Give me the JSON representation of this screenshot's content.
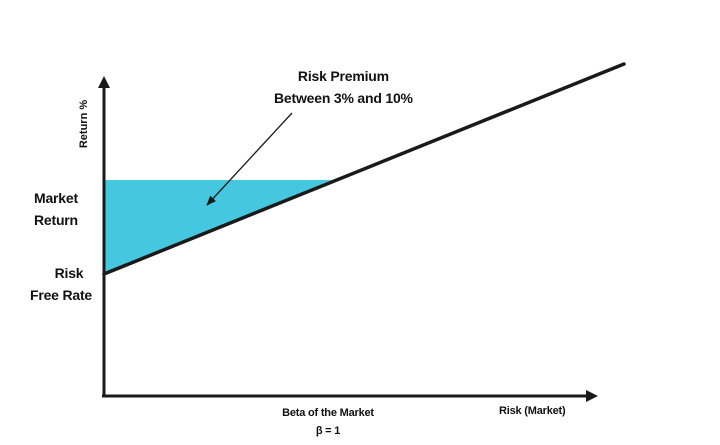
{
  "chart_data": {
    "type": "diagram",
    "y_axis_label": "Return %",
    "x_axis_label": "Risk (Market)",
    "y_levels": [
      {
        "label": [
          "Market",
          "Return"
        ]
      },
      {
        "label": [
          "Risk",
          "Free Rate"
        ]
      }
    ],
    "x_marker": {
      "label": "Beta of the Market",
      "value_label": "β = 1"
    },
    "annotation": {
      "lines": [
        "Risk Premium",
        "Between 3% and 10%"
      ]
    },
    "colors": {
      "premium_fill": "#45c8df",
      "line": "#1a1a1a",
      "axis": "#1a1a1a",
      "text": "#111111"
    }
  }
}
